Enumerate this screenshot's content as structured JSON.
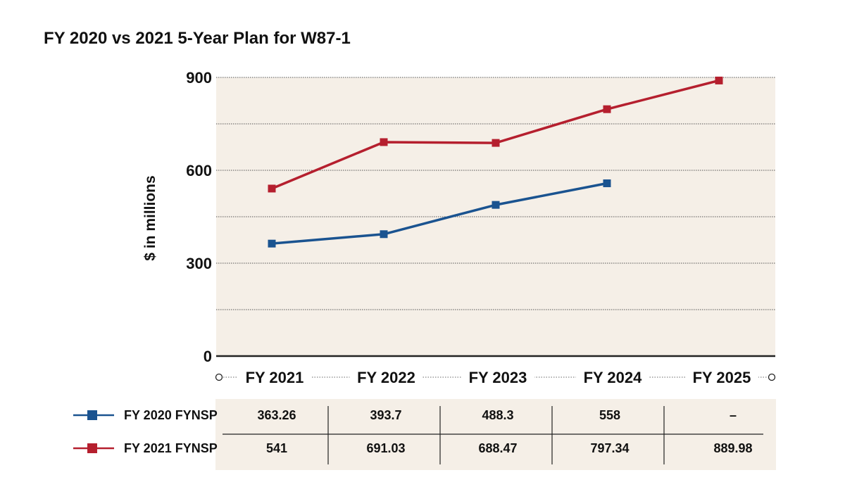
{
  "chart_data": {
    "type": "line",
    "title": "FY 2020 vs 2021 5-Year Plan for W87-1",
    "ylabel": "$ in millions",
    "xlabel": "",
    "categories": [
      "FY 2021",
      "FY 2022",
      "FY 2023",
      "FY 2024",
      "FY 2025"
    ],
    "ylim": [
      0,
      900
    ],
    "yticks": [
      0,
      300,
      600,
      900
    ],
    "grid": true,
    "series": [
      {
        "name": "FY 2020 FYNSP",
        "color": "#1a5390",
        "values": [
          363.26,
          393.7,
          488.3,
          558,
          null
        ],
        "labels": [
          "363.26",
          "393.7",
          "488.3",
          "558",
          "–"
        ]
      },
      {
        "name": "FY 2021 FYNSP",
        "color": "#b51f2e",
        "values": [
          541,
          691.03,
          688.47,
          797.34,
          889.98
        ],
        "labels": [
          "541",
          "691.03",
          "688.47",
          "797.34",
          "889.98"
        ]
      }
    ],
    "colors": {
      "plot_background": "#f5efe7",
      "table_background": "#f5efe7"
    }
  }
}
